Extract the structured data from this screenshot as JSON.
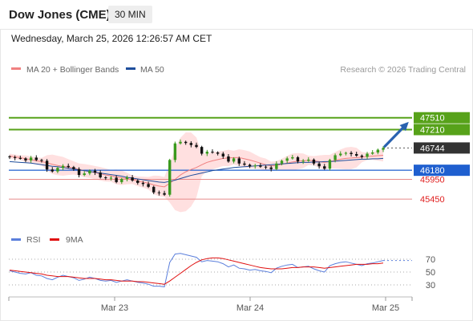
{
  "header": {
    "instrument": "Dow Jones (CME)",
    "timeframe": "30 MIN",
    "datetime": "Wednesday, March 25, 2026 12:26:57 AM CET"
  },
  "legend": {
    "ma20_label": "MA 20 + Bollinger Bands",
    "ma20_color": "#f08080",
    "ma50_label": "MA 50",
    "ma50_color": "#1f4e9c",
    "copyright": "Research © 2026 Trading Central"
  },
  "rsi_legend": {
    "rsi_label": "RSI",
    "rsi_color": "#5b7fdc",
    "ma_label": "9MA",
    "ma_color": "#e01010"
  },
  "colors": {
    "up_candle": "#3a9a1e",
    "down_candle": "#111111",
    "bollinger": "#ffd6d6",
    "resistance": "#57a21a",
    "support": "#1f5fcf",
    "price": "#333333",
    "target_line": "#e88a8a",
    "arrow": "#2a62b0"
  },
  "chart_data": [
    {
      "type": "candlestick",
      "x_ticks": [
        "Mar 23",
        "Mar 24",
        "Mar 25"
      ],
      "ylim": [
        44740,
        48480
      ],
      "levels": [
        {
          "value": 47510,
          "label": "47510",
          "kind": "resistance"
        },
        {
          "value": 47210,
          "label": "47210",
          "kind": "resistance"
        },
        {
          "value": 46744,
          "label": "46744",
          "kind": "price"
        },
        {
          "value": 46180,
          "label": "46180",
          "kind": "support"
        },
        {
          "value": 45950,
          "label": "45950",
          "kind": "target"
        },
        {
          "value": 45450,
          "label": "45450",
          "kind": "target"
        }
      ],
      "close_series": [
        46510,
        46490,
        46480,
        46430,
        46500,
        46440,
        46420,
        46200,
        46150,
        46240,
        46290,
        46260,
        46210,
        46060,
        46100,
        46170,
        46120,
        46000,
        45980,
        45990,
        45880,
        45960,
        46000,
        45920,
        45860,
        45830,
        45760,
        45620,
        45600,
        45560,
        46440,
        46860,
        46900,
        46870,
        46820,
        46770,
        46600,
        46650,
        46630,
        46600,
        46530,
        46400,
        46480,
        46350,
        46320,
        46280,
        46300,
        46270,
        46250,
        46210,
        46350,
        46420,
        46480,
        46510,
        46400,
        46420,
        46450,
        46350,
        46280,
        46220,
        46440,
        46560,
        46600,
        46620,
        46590,
        46550,
        46520,
        46600,
        46630,
        46700,
        46744
      ],
      "ma20_series": [
        46540,
        46520,
        46500,
        46470,
        46450,
        46420,
        46400,
        46370,
        46330,
        46300,
        46280,
        46260,
        46240,
        46200,
        46170,
        46150,
        46120,
        46090,
        46060,
        46040,
        46010,
        45990,
        45970,
        45940,
        45900,
        45880,
        45850,
        45810,
        45780,
        45760,
        45850,
        45950,
        46060,
        46140,
        46200,
        46250,
        46320,
        46380,
        46420,
        46450,
        46480,
        46490,
        46500,
        46500,
        46470,
        46440,
        46400,
        46360,
        46320,
        46290,
        46300,
        46330,
        46360,
        46390,
        46410,
        46420,
        46430,
        46420,
        46400,
        46380,
        46400,
        46430,
        46460,
        46480,
        46490,
        46500,
        46510,
        46530,
        46540,
        46550,
        46560
      ],
      "ma50_series": [
        46400,
        46390,
        46380,
        46370,
        46360,
        46340,
        46320,
        46300,
        46280,
        46270,
        46250,
        46230,
        46210,
        46190,
        46170,
        46150,
        46130,
        46110,
        46090,
        46070,
        46050,
        46030,
        46000,
        45980,
        45960,
        45940,
        45920,
        45900,
        45880,
        45870,
        45900,
        45930,
        45970,
        46010,
        46050,
        46080,
        46110,
        46140,
        46170,
        46190,
        46210,
        46230,
        46250,
        46260,
        46270,
        46280,
        46290,
        46300,
        46310,
        46320,
        46330,
        46340,
        46350,
        46360,
        46370,
        46380,
        46380,
        46390,
        46390,
        46400,
        46400,
        46410,
        46420,
        46430,
        46440,
        46450,
        46460,
        46460,
        46470,
        46470,
        46480
      ]
    },
    {
      "type": "line",
      "title": "RSI",
      "y_ticks": [
        "70",
        "50",
        "30"
      ],
      "ylim": [
        15,
        85
      ],
      "rsi_series": [
        52,
        50,
        48,
        47,
        49,
        45,
        44,
        40,
        38,
        42,
        45,
        43,
        41,
        37,
        39,
        42,
        40,
        37,
        36,
        37,
        34,
        36,
        38,
        36,
        34,
        33,
        31,
        28,
        28,
        27,
        65,
        78,
        79,
        77,
        75,
        73,
        66,
        68,
        67,
        66,
        63,
        58,
        61,
        56,
        55,
        53,
        54,
        52,
        51,
        49,
        56,
        59,
        61,
        62,
        57,
        58,
        59,
        55,
        52,
        50,
        60,
        63,
        65,
        66,
        64,
        62,
        60,
        63,
        64,
        66,
        68
      ],
      "ma_series": [
        53,
        52,
        51,
        50,
        49,
        48,
        47,
        45,
        44,
        43,
        43,
        43,
        42,
        41,
        40,
        40,
        40,
        39,
        38,
        38,
        37,
        36,
        36,
        36,
        35,
        35,
        34,
        33,
        32,
        31,
        36,
        42,
        48,
        54,
        60,
        65,
        69,
        71,
        72,
        72,
        71,
        69,
        67,
        65,
        63,
        61,
        59,
        57,
        56,
        55,
        55,
        55,
        56,
        57,
        57,
        58,
        58,
        58,
        57,
        56,
        57,
        58,
        59,
        60,
        61,
        62,
        62,
        62,
        63,
        63,
        64
      ]
    }
  ]
}
